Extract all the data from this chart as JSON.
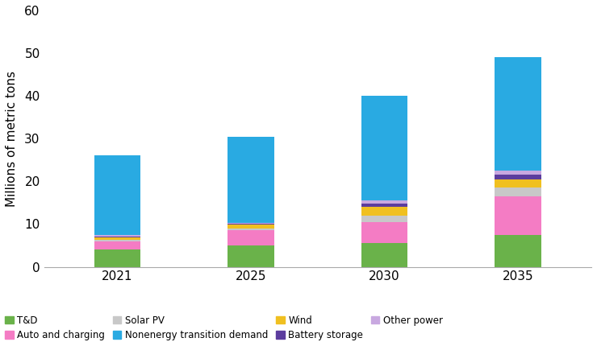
{
  "categories": [
    "2021",
    "2025",
    "2030",
    "2035"
  ],
  "series": {
    "T&D": [
      4.0,
      5.0,
      5.5,
      7.5
    ],
    "Auto and charging": [
      2.0,
      3.5,
      5.0,
      9.0
    ],
    "Solar PV": [
      0.4,
      0.5,
      1.5,
      2.0
    ],
    "Wind": [
      0.4,
      0.8,
      2.0,
      2.0
    ],
    "Battery storage": [
      0.2,
      0.2,
      0.8,
      1.0
    ],
    "Other power": [
      0.4,
      0.3,
      0.8,
      1.0
    ],
    "Nonenergy transition demand": [
      18.6,
      20.2,
      24.4,
      26.5
    ]
  },
  "colors": {
    "T&D": "#6ab24a",
    "Auto and charging": "#f47cc4",
    "Solar PV": "#c8c8c8",
    "Wind": "#f0c020",
    "Battery storage": "#5c3d9e",
    "Other power": "#c8a8e0",
    "Nonenergy transition demand": "#29aae2"
  },
  "stack_order": [
    "T&D",
    "Auto and charging",
    "Solar PV",
    "Wind",
    "Battery storage",
    "Other power",
    "Nonenergy transition demand"
  ],
  "legend_order": [
    "T&D",
    "Auto and charging",
    "Solar PV",
    "Nonenergy transition demand",
    "Wind",
    "Battery storage",
    "Other power"
  ],
  "ylabel": "Millions of metric tons",
  "ylim": [
    0,
    60
  ],
  "yticks": [
    0,
    10,
    20,
    30,
    40,
    50,
    60
  ],
  "bar_width": 0.35,
  "x_positions": [
    0,
    1,
    2,
    3
  ],
  "xlim": [
    -0.55,
    3.55
  ],
  "figsize": [
    7.4,
    4.25
  ],
  "dpi": 100
}
